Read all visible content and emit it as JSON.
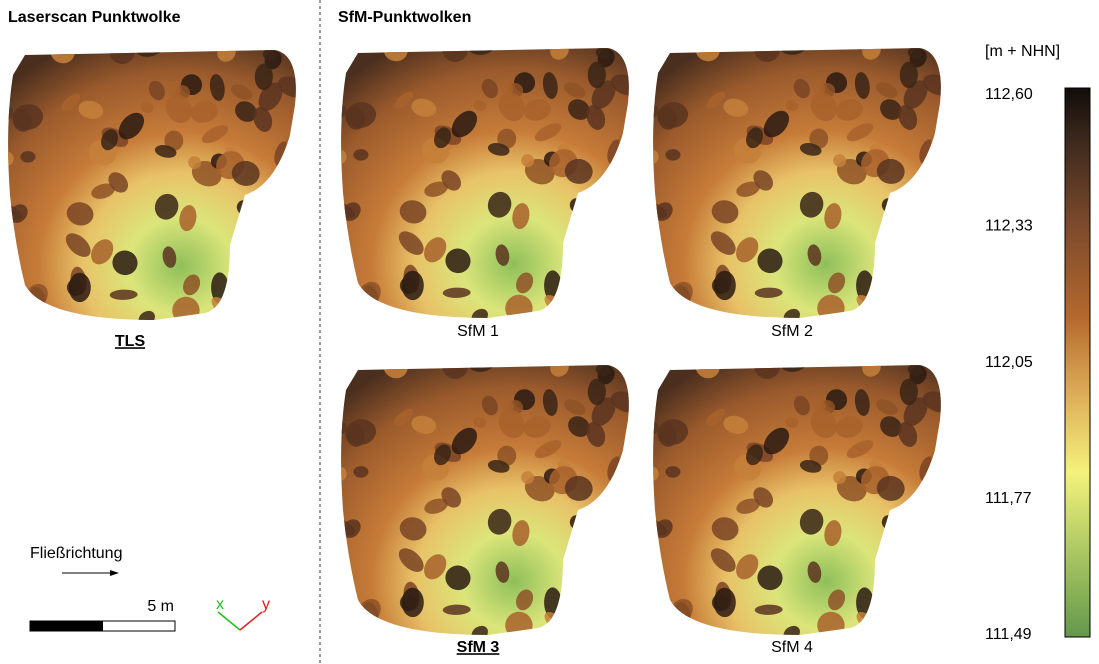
{
  "left": {
    "title": "Laserscan Punktwolke",
    "panels": [
      {
        "label": "TLS"
      }
    ],
    "flow_label": "Fließrichtung",
    "scale_label": "5 m",
    "axis_x": "x",
    "axis_y": "y"
  },
  "right": {
    "title": "SfM-Punktwolken",
    "panels": [
      {
        "label": "SfM 1"
      },
      {
        "label": "SfM 2"
      },
      {
        "label": "SfM 3"
      },
      {
        "label": "SfM 4"
      }
    ]
  },
  "colorbar": {
    "unit": "[m + NHN]",
    "ticks": [
      {
        "value": 112.6,
        "label": "112,60"
      },
      {
        "value": 112.33,
        "label": "112,33"
      },
      {
        "value": 112.05,
        "label": "112,05"
      },
      {
        "value": 111.77,
        "label": "111,77"
      },
      {
        "value": 111.49,
        "label": "111,49"
      }
    ]
  }
}
